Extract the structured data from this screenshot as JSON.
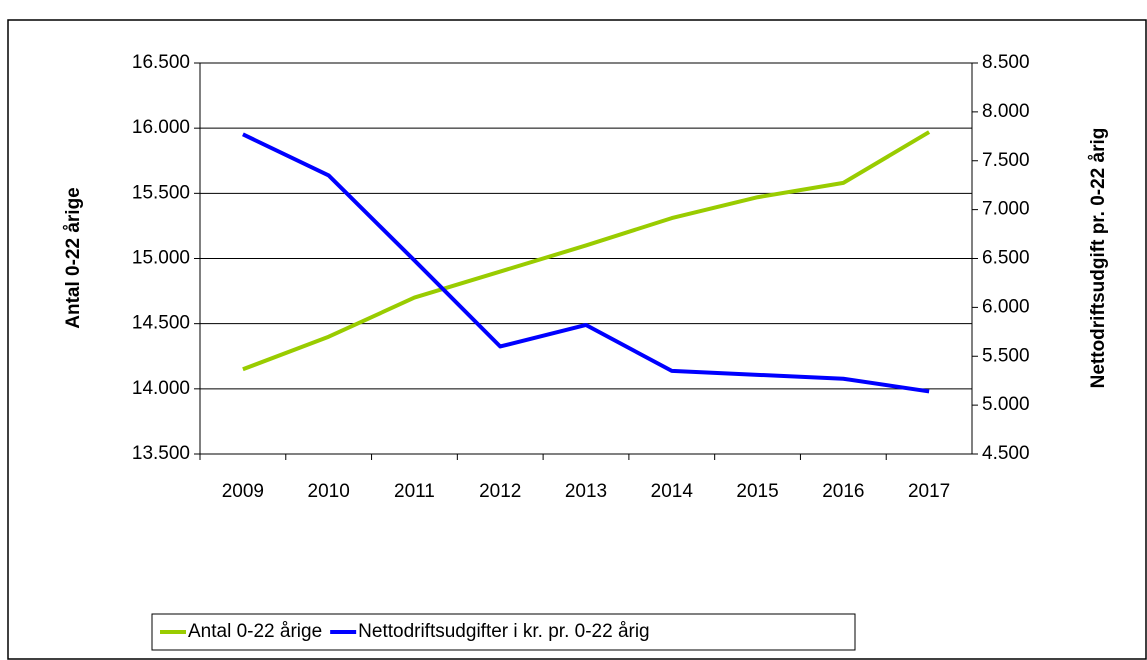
{
  "chart_data": {
    "type": "line",
    "y_label": "Antal 0-22 årige",
    "y2_label": "Nettodriftsudgift pr. 0-22 årig",
    "categories": [
      "2009",
      "2010",
      "2011",
      "2012",
      "2013",
      "2014",
      "2015",
      "2016",
      "2017"
    ],
    "series": [
      {
        "name": "Antal 0-22 årige",
        "color": "#99cc00",
        "values": [
          14150,
          14400,
          14700,
          14900,
          15100,
          15310,
          15470,
          15580,
          15970
        ]
      },
      {
        "name": "Nettodriftsudgifter i kr. pr. 0-22 årig",
        "color": "#0000ff",
        "axis": "y2",
        "values": [
          7770,
          7350,
          6480,
          5600,
          5820,
          5350,
          5310,
          5270,
          5140
        ]
      }
    ],
    "ylim": [
      13500,
      16500
    ],
    "yticks": [
      {
        "value": 13500,
        "label": "13.500"
      },
      {
        "value": 14000,
        "label": "14.000"
      },
      {
        "value": 14500,
        "label": "14.500"
      },
      {
        "value": 15000,
        "label": "15.000"
      },
      {
        "value": 15500,
        "label": "15.500"
      },
      {
        "value": 16000,
        "label": "16.000"
      },
      {
        "value": 16500,
        "label": "16.500"
      }
    ],
    "y2lim": [
      4500,
      8500
    ],
    "y2ticks": [
      {
        "value": 4500,
        "label": "4.500"
      },
      {
        "value": 5000,
        "label": "5.000"
      },
      {
        "value": 5500,
        "label": "5.500"
      },
      {
        "value": 6000,
        "label": "6.000"
      },
      {
        "value": 6500,
        "label": "6.500"
      },
      {
        "value": 7000,
        "label": "7.000"
      },
      {
        "value": 7500,
        "label": "7.500"
      },
      {
        "value": 8000,
        "label": "8.000"
      },
      {
        "value": 8500,
        "label": "8.500"
      }
    ],
    "grid": true,
    "legend": "bottom"
  }
}
